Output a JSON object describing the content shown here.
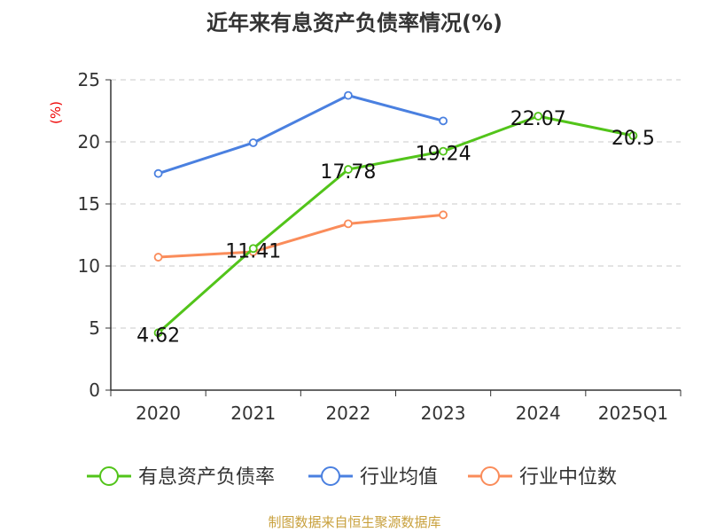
{
  "chart_data": {
    "type": "line",
    "title": "近年来有息资产负债率情况(%)",
    "ylabel": "(%)",
    "categories": [
      "2020",
      "2021",
      "2022",
      "2023",
      "2024",
      "2025Q1"
    ],
    "ylim": [
      0,
      25
    ],
    "yticks": [
      0,
      5,
      10,
      15,
      20,
      25
    ],
    "grid": true,
    "legend_position": "bottom",
    "series": [
      {
        "name": "有息资产负债率",
        "color": "#52c41a",
        "values": [
          4.62,
          11.41,
          17.78,
          19.24,
          22.07,
          20.5
        ],
        "labels": [
          "4.62",
          "11.41",
          "17.78",
          "19.24",
          "22.07",
          "20.5"
        ]
      },
      {
        "name": "行业均值",
        "color": "#4a80e0",
        "values": [
          17.45,
          19.93,
          23.74,
          21.69,
          null,
          null
        ]
      },
      {
        "name": "行业中位数",
        "color": "#fa8c5a",
        "values": [
          10.71,
          11.14,
          13.4,
          14.12,
          null,
          null
        ]
      }
    ]
  },
  "source": "制图数据来自恒生聚源数据库"
}
